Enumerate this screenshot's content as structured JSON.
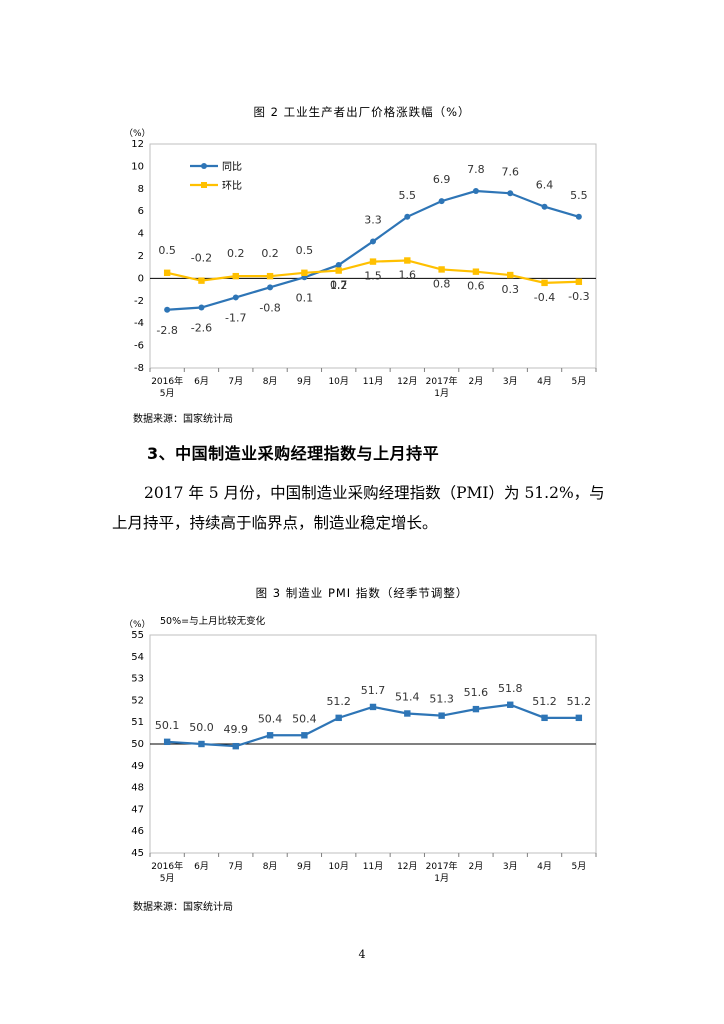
{
  "figure2": {
    "caption": "图 2  工业生产者出厂价格涨跌幅（%）",
    "source": "数据来源：国家统计局",
    "colors": {
      "yoy": "#2e75b6",
      "mom": "#ffc000"
    },
    "chart_data": {
      "type": "line",
      "title": "图 2  工业生产者出厂价格涨跌幅（%）",
      "unit": "（%）",
      "ylim": [
        -8,
        12
      ],
      "yticks": [
        12,
        10,
        8,
        6,
        4,
        2,
        0,
        -2,
        -4,
        -6,
        -8
      ],
      "categories": [
        [
          "2016年",
          "5月"
        ],
        [
          "6月"
        ],
        [
          "7月"
        ],
        [
          "8月"
        ],
        [
          "9月"
        ],
        [
          "10月"
        ],
        [
          "11月"
        ],
        [
          "12月"
        ],
        [
          "2017年",
          "1月"
        ],
        [
          "2月"
        ],
        [
          "3月"
        ],
        [
          "4月"
        ],
        [
          "5月"
        ]
      ],
      "series": [
        {
          "name": "同比",
          "values": [
            -2.8,
            -2.6,
            -1.7,
            -0.8,
            0.1,
            1.2,
            3.3,
            5.5,
            6.9,
            7.8,
            7.6,
            6.4,
            5.5
          ],
          "labels": [
            "-2.8",
            "-2.6",
            "-1.7",
            "-0.8",
            "0.1",
            "1.2",
            "3.3",
            "5.5",
            "6.9",
            "7.8",
            "7.6",
            "6.4",
            "5.5"
          ]
        },
        {
          "name": "环比",
          "values": [
            0.5,
            -0.2,
            0.2,
            0.2,
            0.5,
            0.7,
            1.5,
            1.6,
            0.8,
            0.6,
            0.3,
            -0.4,
            -0.3
          ],
          "labels": [
            "0.5",
            "-0.2",
            "0.2",
            "0.2",
            "0.5",
            "0.7",
            "1.5",
            "1.6",
            "0.8",
            "0.6",
            "0.3",
            "-0.4",
            "-0.3"
          ]
        }
      ]
    }
  },
  "section": {
    "heading": "3、中国制造业采购经理指数与上月持平",
    "paragraph": "2017 年 5 月份，中国制造业采购经理指数（PMI）为 51.2%，与上月持平，持续高于临界点，制造业稳定增长。"
  },
  "figure3": {
    "caption": "图 3  制造业 PMI 指数（经季节调整）",
    "source": "数据来源：国家统计局",
    "colors": {
      "line": "#2e75b6"
    },
    "chart_data": {
      "type": "line",
      "title": "图 3  制造业 PMI 指数（经季节调整）",
      "unit": "（%）",
      "note": "50%=与上月比较无变化",
      "ylim": [
        45,
        55
      ],
      "yticks": [
        55,
        54,
        53,
        52,
        51,
        50,
        49,
        48,
        47,
        46,
        45
      ],
      "categories": [
        [
          "2016年",
          "5月"
        ],
        [
          "6月"
        ],
        [
          "7月"
        ],
        [
          "8月"
        ],
        [
          "9月"
        ],
        [
          "10月"
        ],
        [
          "11月"
        ],
        [
          "12月"
        ],
        [
          "2017年",
          "1月"
        ],
        [
          "2月"
        ],
        [
          "3月"
        ],
        [
          "4月"
        ],
        [
          "5月"
        ]
      ],
      "series": [
        {
          "name": "PMI",
          "values": [
            50.1,
            50.0,
            49.9,
            50.4,
            50.4,
            51.2,
            51.7,
            51.4,
            51.3,
            51.6,
            51.8,
            51.2,
            51.2
          ],
          "labels": [
            "50.1",
            "50.0",
            "49.9",
            "50.4",
            "50.4",
            "51.2",
            "51.7",
            "51.4",
            "51.3",
            "51.6",
            "51.8",
            "51.2",
            "51.2"
          ]
        }
      ]
    }
  },
  "page_number": "4"
}
